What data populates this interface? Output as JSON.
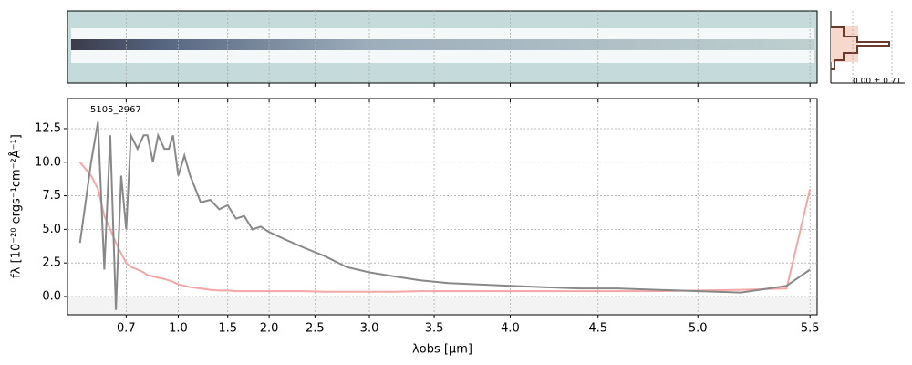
{
  "chart_data": {
    "type": "line",
    "label": "5105_2967",
    "hist_label": "0.00 ± 0.71",
    "xlabel": "λobs [μm]",
    "ylabel": "fλ [10⁻²⁰ ergs⁻¹cm⁻²Å⁻¹]",
    "x": [
      0.55,
      0.58,
      0.6,
      0.62,
      0.64,
      0.66,
      0.68,
      0.7,
      0.72,
      0.75,
      0.78,
      0.8,
      0.83,
      0.86,
      0.9,
      0.93,
      0.96,
      1.0,
      1.05,
      1.1,
      1.15,
      1.2,
      1.3,
      1.4,
      1.5,
      1.6,
      1.7,
      1.8,
      1.9,
      2.0,
      2.2,
      2.4,
      2.6,
      2.8,
      3.0,
      3.2,
      3.4,
      3.6,
      3.8,
      4.0,
      4.2,
      4.4,
      4.6,
      4.8,
      5.0,
      5.2,
      5.4,
      5.5
    ],
    "series": [
      {
        "color": "#f4a6a6",
        "values": [
          10,
          9,
          8,
          6,
          5,
          4,
          3.2,
          2.5,
          2.2,
          2.0,
          1.8,
          1.6,
          1.5,
          1.4,
          1.3,
          1.2,
          1.1,
          0.9,
          0.8,
          0.7,
          0.65,
          0.6,
          0.5,
          0.45,
          0.45,
          0.4,
          0.4,
          0.4,
          0.4,
          0.4,
          0.4,
          0.4,
          0.35,
          0.35,
          0.35,
          0.35,
          0.4,
          0.4,
          0.4,
          0.4,
          0.4,
          0.4,
          0.4,
          0.4,
          0.45,
          0.5,
          0.6,
          8.0
        ]
      },
      {
        "color": "#888888",
        "values": [
          4,
          10,
          13,
          2,
          12,
          -1,
          9,
          5,
          12,
          11,
          12,
          12,
          10,
          12,
          11,
          11,
          12,
          9,
          10.5,
          9,
          8,
          7,
          7.2,
          6.5,
          6.8,
          5.8,
          6.0,
          5.0,
          5.2,
          4.8,
          4.2,
          3.6,
          3.0,
          2.2,
          1.8,
          1.5,
          1.2,
          1.0,
          0.9,
          0.8,
          0.7,
          0.6,
          0.6,
          0.5,
          0.4,
          0.3,
          0.8,
          2.0
        ]
      }
    ],
    "xscale": "spectral",
    "xlim": [
      0.52,
      5.53
    ],
    "xticks": [
      0.7,
      {
        "value": 1,
        "label": "1.0"
      },
      1.5,
      {
        "value": 2,
        "label": "2.0"
      },
      2.5,
      {
        "value": 3,
        "label": "3.0"
      },
      3.5,
      {
        "value": 4,
        "label": "4.0"
      },
      4.5,
      {
        "value": 5,
        "label": "5.0"
      },
      5.5
    ],
    "ylim": [
      -1.36,
      14.74
    ],
    "yticks": [
      {
        "value": 0,
        "label": "0.0"
      },
      2.5,
      {
        "value": 5,
        "label": "5.0"
      },
      7.5,
      {
        "value": 10,
        "label": "10.0"
      },
      12.5
    ],
    "grid": true
  }
}
